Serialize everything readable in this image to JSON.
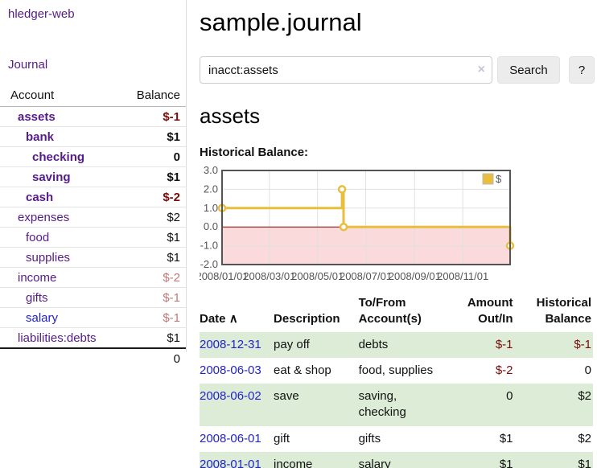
{
  "colors": {
    "purple": "#551a8b",
    "blue": "#2222cc",
    "neg-strong": "#7c0b0b",
    "neg-soft": "#c27878",
    "row-green": "#dcecd7",
    "chart-gold": "#e9be3d",
    "chart-pink": "#fadada",
    "chart-zero": "#8b0000",
    "chart-frame": "#545454",
    "chart-grid": "#e0e0e0",
    "button-bg": "#ececec",
    "border-light": "#dddddd"
  },
  "sidebar": {
    "brand": "hledger-web",
    "journal_link": "Journal",
    "header": {
      "account": "Account",
      "balance": "Balance"
    },
    "accounts": [
      {
        "name": "assets",
        "balance": "$-1"
      },
      {
        "name": "bank",
        "balance": "$1"
      },
      {
        "name": "checking",
        "balance": "0"
      },
      {
        "name": "saving",
        "balance": "$1"
      },
      {
        "name": "cash",
        "balance": "$-2"
      },
      {
        "name": "expenses",
        "balance": "$2"
      },
      {
        "name": "food",
        "balance": "$1"
      },
      {
        "name": "supplies",
        "balance": "$1"
      },
      {
        "name": "income",
        "balance": "$-2"
      },
      {
        "name": "gifts",
        "balance": "$-1"
      },
      {
        "name": "salary",
        "balance": "$-1"
      },
      {
        "name": "liabilities:debts",
        "balance": "$1"
      }
    ],
    "total": "0"
  },
  "main": {
    "title": "sample.journal",
    "search": {
      "value": "inacct:assets",
      "button_label": "Search",
      "help_label": "?"
    },
    "account_heading": "assets",
    "chart_heading": "Historical Balance:"
  },
  "icons": {
    "clear": "×",
    "sort_asc": "∧"
  },
  "chart_data": {
    "type": "line",
    "title": "Historical Balance:",
    "series": [
      {
        "name": "$",
        "color": "#e9be3d",
        "steps": true,
        "points": [
          [
            "2008-01-01",
            1
          ],
          [
            "2008-06-01",
            2
          ],
          [
            "2008-06-03",
            0
          ],
          [
            "2008-12-31",
            -1
          ]
        ]
      }
    ],
    "x_ticks": [
      "2008/01/01",
      "2008/03/01",
      "2008/05/01",
      "2008/07/01",
      "2008/09/01",
      "2008/11/01"
    ],
    "y_ticks": [
      "3.0",
      "2.0",
      "1.0",
      "0.0",
      "-1.0",
      "-2.0"
    ],
    "xlim": [
      "2008-01-01",
      "2008-12-31"
    ],
    "ylim": [
      -2,
      3
    ],
    "grid": true,
    "legend": {
      "label": "$",
      "position": "top-right"
    },
    "negative_region_color": "#fadada",
    "zero_line_color": "#8b0000"
  },
  "register": {
    "headers": {
      "date": "Date",
      "description": "Description",
      "accounts": "To/From Account(s)",
      "amount": "Amount Out/In",
      "balance": "Historical Balance"
    },
    "rows": [
      {
        "date": "2008-12-31",
        "description": "pay off",
        "accounts": "debts",
        "amount": "$-1",
        "balance": "$-1"
      },
      {
        "date": "2008-06-03",
        "description": "eat & shop",
        "accounts": "food, supplies",
        "amount": "$-2",
        "balance": "0"
      },
      {
        "date": "2008-06-02",
        "description": "save",
        "accounts": "saving, checking",
        "amount": "0",
        "balance": "$2"
      },
      {
        "date": "2008-06-01",
        "description": "gift",
        "accounts": "gifts",
        "amount": "$1",
        "balance": "$2"
      },
      {
        "date": "2008-01-01",
        "description": "income",
        "accounts": "salary",
        "amount": "$1",
        "balance": "$1"
      }
    ]
  }
}
